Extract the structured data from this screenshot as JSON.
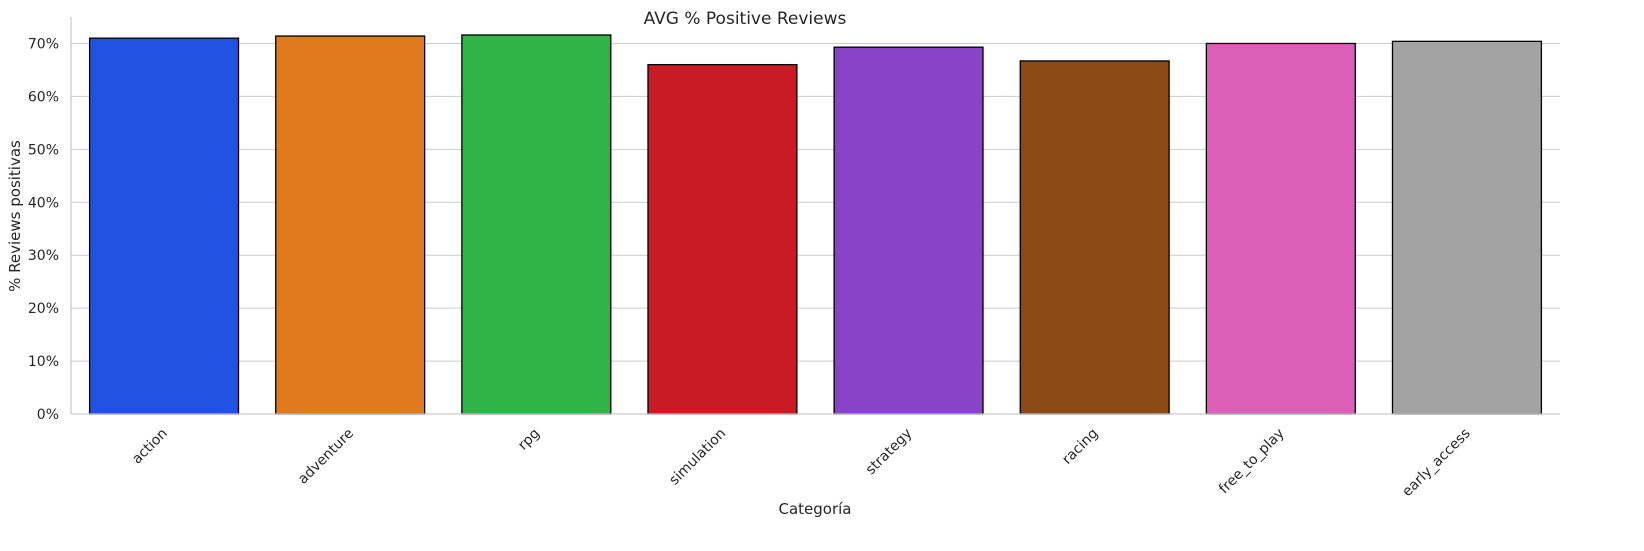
{
  "chart_data": {
    "type": "bar",
    "title": "AVG % Positive Reviews",
    "xlabel": "Categoría",
    "ylabel": "% Reviews positivas",
    "categories": [
      "action",
      "adventure",
      "rpg",
      "simulation",
      "strategy",
      "racing",
      "free_to_play",
      "early_access"
    ],
    "values": [
      71.0,
      71.4,
      71.6,
      66.0,
      69.3,
      66.7,
      70.0,
      70.4
    ],
    "colors": [
      "#2351e0",
      "#df7b1d",
      "#30b347",
      "#c91b24",
      "#8943c9",
      "#8a4915",
      "#dc60b7",
      "#a3a3a3"
    ],
    "ylim": [
      0,
      75
    ],
    "yticks": [
      0,
      10,
      20,
      30,
      40,
      50,
      60,
      70
    ],
    "ytick_format": "{v}%",
    "grid": "horizontal",
    "legend": "none"
  }
}
